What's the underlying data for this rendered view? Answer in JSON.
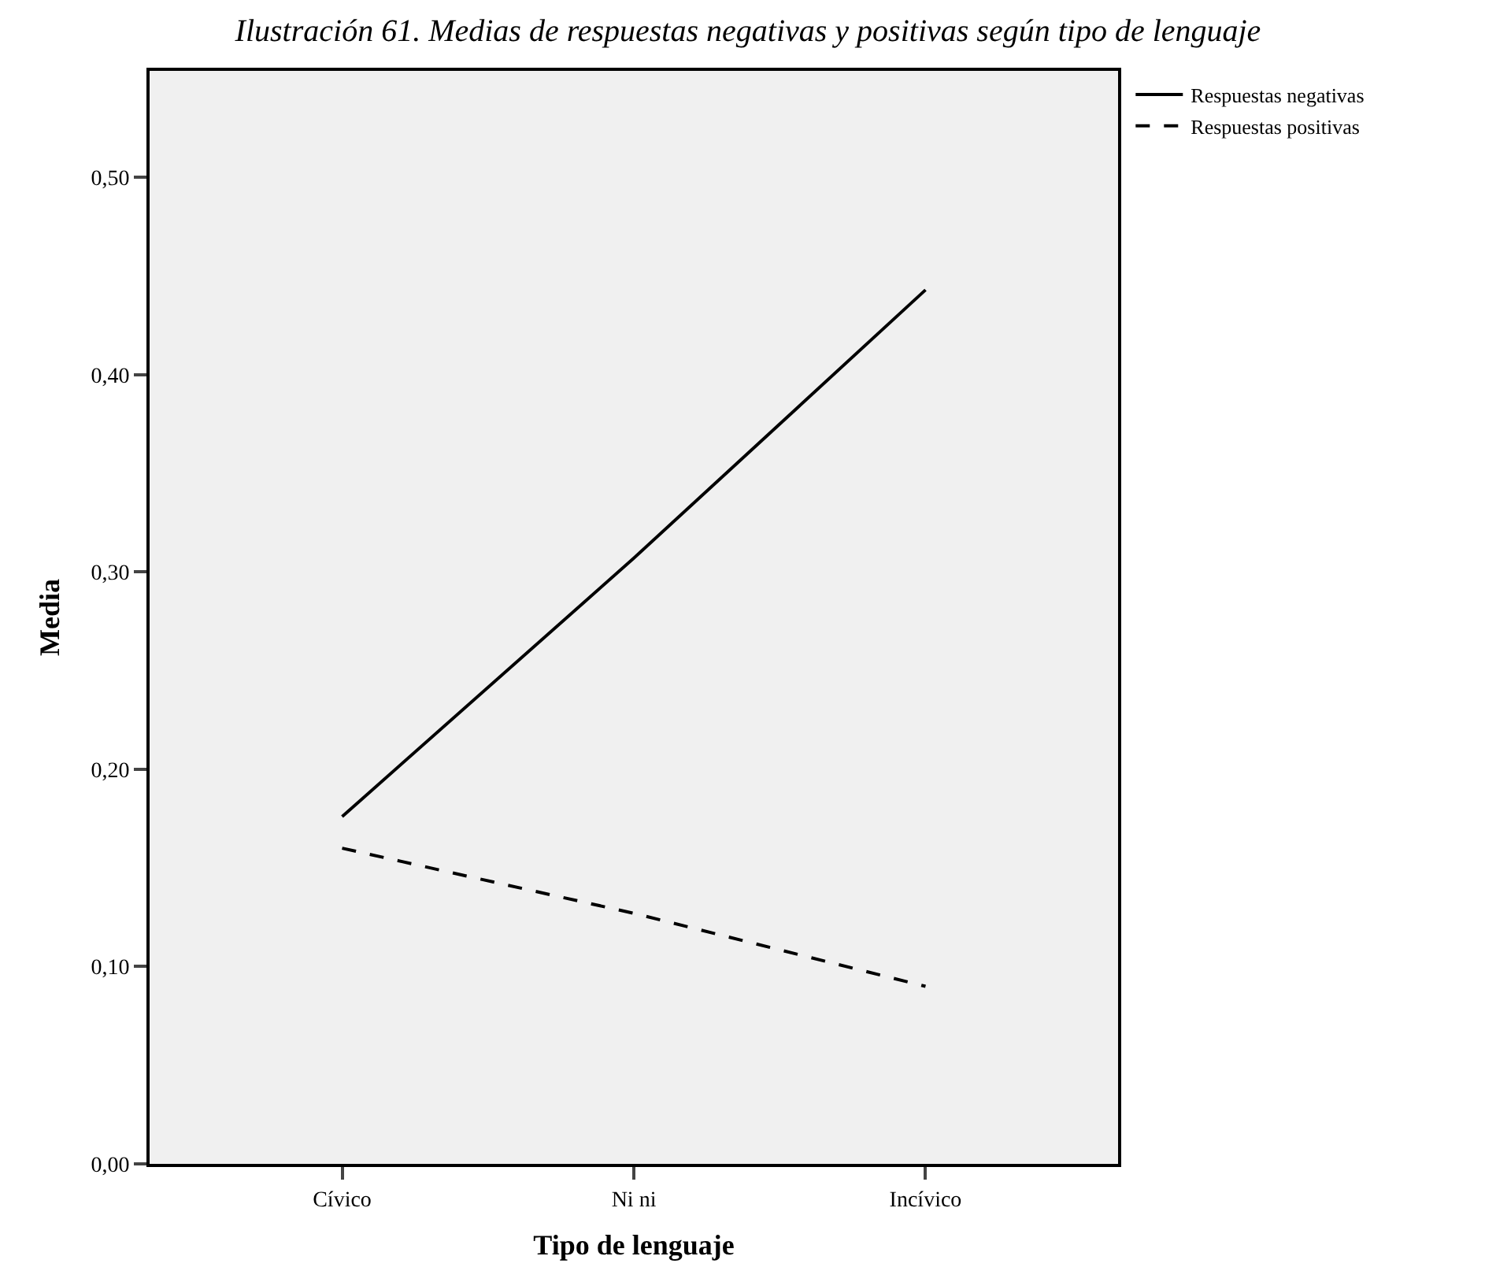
{
  "chart_data": {
    "type": "line",
    "title": "Ilustración 61. Medias de respuestas negativas y positivas según tipo de lenguaje",
    "xlabel": "Tipo de lenguaje",
    "ylabel": "Media",
    "categories": [
      "Cívico",
      "Ni ni",
      "Incívico"
    ],
    "series": [
      {
        "name": "Respuestas negativas",
        "color": "#000000",
        "values": [
          0.176,
          0.307,
          0.443
        ],
        "line_style": "solid"
      },
      {
        "name": "Respuestas positivas",
        "color": "#000000",
        "values": [
          0.16,
          0.127,
          0.09
        ],
        "line_style": "dashed"
      }
    ],
    "ylim": [
      0,
      0.554
    ],
    "yticks": [
      {
        "value": 0,
        "label": "0,00"
      },
      {
        "value": 0.1,
        "label": "0,10"
      },
      {
        "value": 0.2,
        "label": "0,20"
      },
      {
        "value": 0.3,
        "label": "0,30"
      },
      {
        "value": 0.4,
        "label": "0,40"
      },
      {
        "value": 0.5,
        "label": "0,50"
      }
    ],
    "grid": false,
    "legend": "top right",
    "marker": "none"
  }
}
